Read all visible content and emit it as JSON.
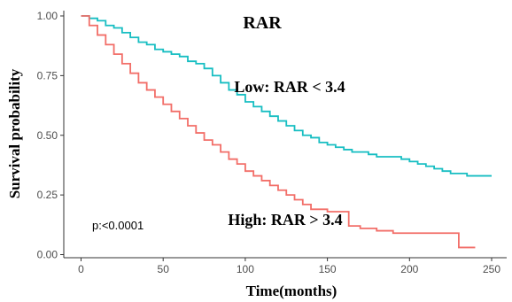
{
  "chart_data": {
    "type": "line",
    "title": "RAR",
    "xlabel": "Time(months)",
    "ylabel": "Survival probability",
    "xlim": [
      0,
      260
    ],
    "ylim": [
      0,
      1
    ],
    "x_ticks": [
      0,
      50,
      100,
      150,
      200,
      250
    ],
    "x_tick_labels": [
      "0",
      "50",
      "100",
      "150",
      "200",
      "250"
    ],
    "y_ticks": [
      0,
      0.25,
      0.5,
      0.75,
      1
    ],
    "y_tick_labels": [
      "0.00",
      "0.25",
      "0.50",
      "0.75",
      "1.00"
    ],
    "grid": false,
    "annotation": "p:<0.0001",
    "series": [
      {
        "name": "Low: RAR < 3.4",
        "color": "#17BEC2",
        "points": [
          [
            0,
            1.0
          ],
          [
            5,
            0.99
          ],
          [
            10,
            0.98
          ],
          [
            15,
            0.96
          ],
          [
            20,
            0.95
          ],
          [
            25,
            0.93
          ],
          [
            30,
            0.91
          ],
          [
            35,
            0.89
          ],
          [
            40,
            0.88
          ],
          [
            45,
            0.86
          ],
          [
            50,
            0.85
          ],
          [
            55,
            0.84
          ],
          [
            60,
            0.83
          ],
          [
            65,
            0.81
          ],
          [
            70,
            0.8
          ],
          [
            75,
            0.78
          ],
          [
            80,
            0.75
          ],
          [
            85,
            0.72
          ],
          [
            90,
            0.69
          ],
          [
            95,
            0.67
          ],
          [
            100,
            0.64
          ],
          [
            105,
            0.62
          ],
          [
            110,
            0.6
          ],
          [
            115,
            0.58
          ],
          [
            120,
            0.56
          ],
          [
            125,
            0.54
          ],
          [
            130,
            0.52
          ],
          [
            135,
            0.5
          ],
          [
            140,
            0.49
          ],
          [
            145,
            0.47
          ],
          [
            150,
            0.46
          ],
          [
            155,
            0.45
          ],
          [
            160,
            0.44
          ],
          [
            165,
            0.43
          ],
          [
            170,
            0.43
          ],
          [
            175,
            0.42
          ],
          [
            180,
            0.41
          ],
          [
            185,
            0.41
          ],
          [
            190,
            0.41
          ],
          [
            195,
            0.4
          ],
          [
            200,
            0.39
          ],
          [
            205,
            0.38
          ],
          [
            210,
            0.37
          ],
          [
            215,
            0.36
          ],
          [
            220,
            0.35
          ],
          [
            225,
            0.34
          ],
          [
            230,
            0.34
          ],
          [
            235,
            0.33
          ],
          [
            240,
            0.33
          ],
          [
            245,
            0.33
          ],
          [
            250,
            0.33
          ]
        ]
      },
      {
        "name": "High: RAR > 3.4",
        "color": "#F26E68",
        "points": [
          [
            0,
            1.0
          ],
          [
            5,
            0.96
          ],
          [
            10,
            0.92
          ],
          [
            15,
            0.88
          ],
          [
            20,
            0.84
          ],
          [
            25,
            0.8
          ],
          [
            30,
            0.76
          ],
          [
            35,
            0.72
          ],
          [
            40,
            0.69
          ],
          [
            45,
            0.66
          ],
          [
            50,
            0.63
          ],
          [
            55,
            0.6
          ],
          [
            60,
            0.57
          ],
          [
            65,
            0.54
          ],
          [
            70,
            0.51
          ],
          [
            75,
            0.48
          ],
          [
            80,
            0.46
          ],
          [
            85,
            0.43
          ],
          [
            90,
            0.4
          ],
          [
            95,
            0.38
          ],
          [
            100,
            0.35
          ],
          [
            105,
            0.33
          ],
          [
            110,
            0.31
          ],
          [
            115,
            0.29
          ],
          [
            120,
            0.27
          ],
          [
            125,
            0.25
          ],
          [
            130,
            0.23
          ],
          [
            135,
            0.21
          ],
          [
            140,
            0.19
          ],
          [
            145,
            0.19
          ],
          [
            150,
            0.18
          ],
          [
            155,
            0.18
          ],
          [
            160,
            0.18
          ],
          [
            163,
            0.12
          ],
          [
            165,
            0.12
          ],
          [
            170,
            0.11
          ],
          [
            175,
            0.11
          ],
          [
            180,
            0.1
          ],
          [
            185,
            0.1
          ],
          [
            190,
            0.09
          ],
          [
            195,
            0.09
          ],
          [
            200,
            0.09
          ],
          [
            205,
            0.09
          ],
          [
            210,
            0.09
          ],
          [
            215,
            0.09
          ],
          [
            220,
            0.09
          ],
          [
            225,
            0.09
          ],
          [
            230,
            0.03
          ],
          [
            235,
            0.03
          ],
          [
            240,
            0.03
          ]
        ]
      }
    ]
  }
}
